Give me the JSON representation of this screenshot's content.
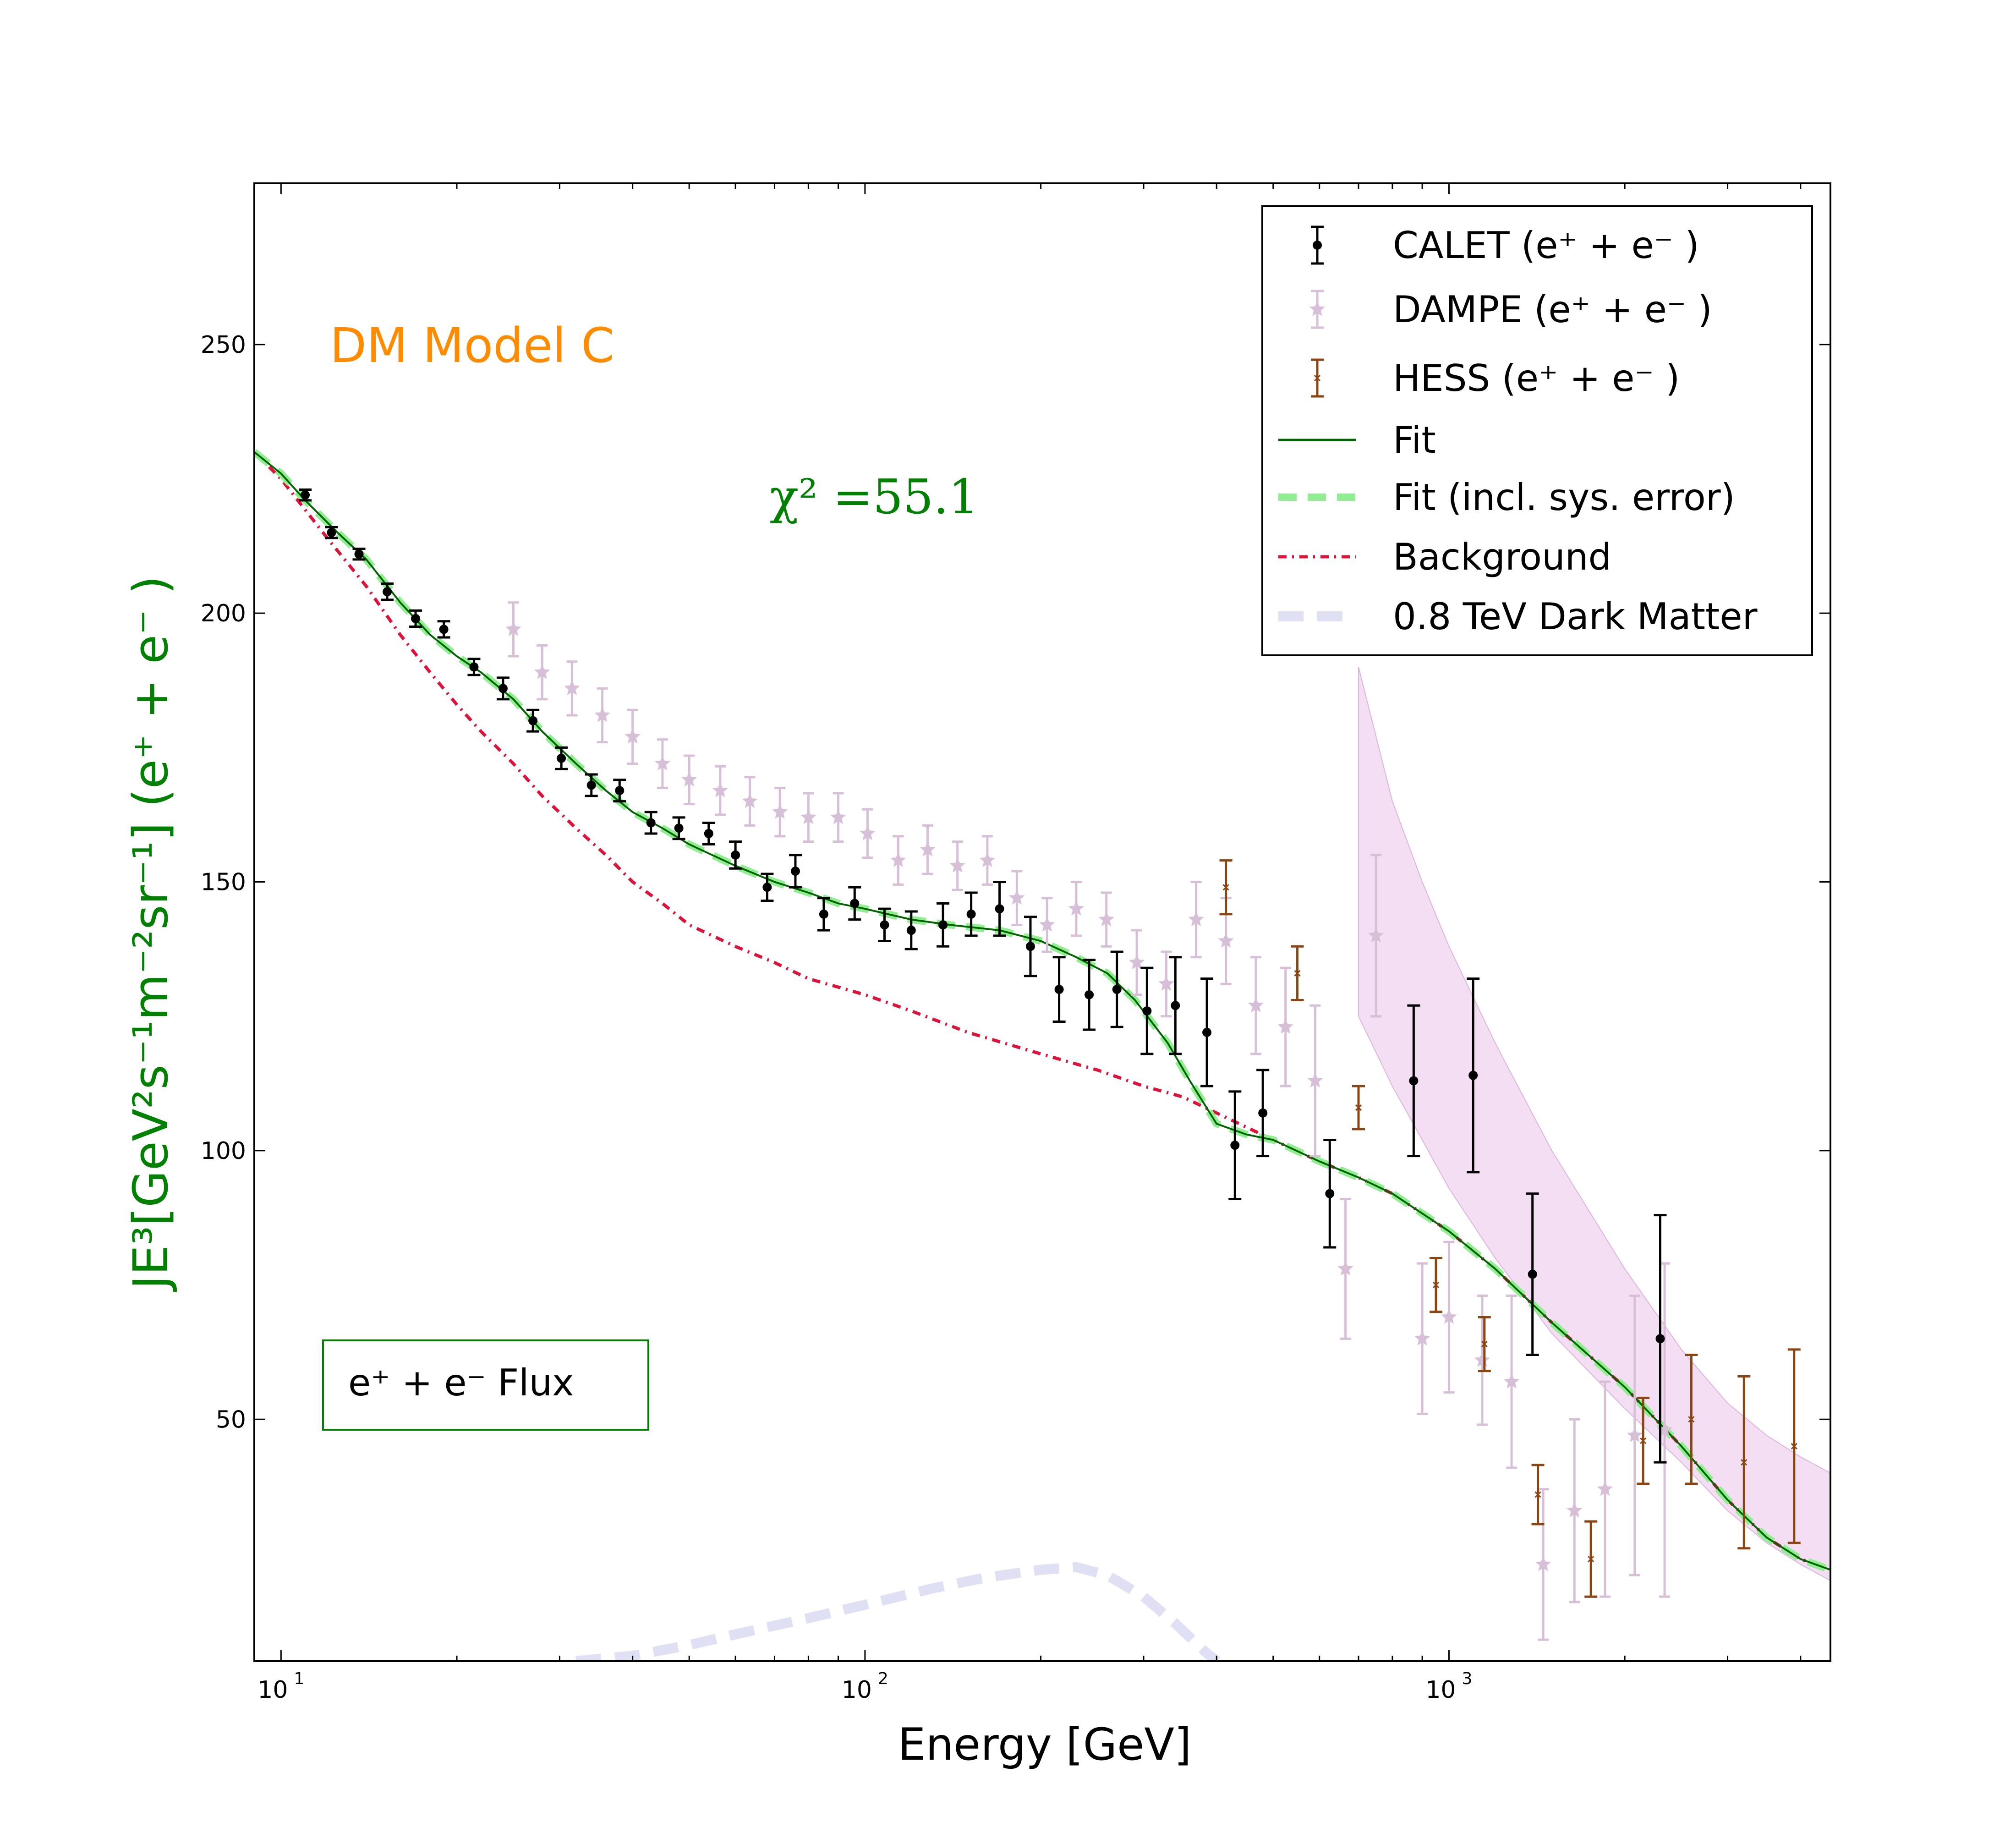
{
  "chart_data": {
    "type": "scatter",
    "x_scale": "log",
    "xlim": [
      9,
      4500
    ],
    "ylim": [
      5,
      280
    ],
    "xlabel": "Energy [GeV]",
    "ylabel": "JE³[GeV²s⁻¹m⁻²sr⁻¹] (e⁺ + e⁻ )",
    "x_tick_labels": [
      {
        "base": "10",
        "exp": "1",
        "value": 10
      },
      {
        "base": "10",
        "exp": "2",
        "value": 100
      },
      {
        "base": "10",
        "exp": "3",
        "value": 1000
      }
    ],
    "y_ticks": [
      50,
      100,
      150,
      200,
      250
    ],
    "y_tick_labels": [
      "50",
      "100",
      "150",
      "200",
      "250"
    ],
    "annotations": {
      "model": "DM Model C",
      "chi2": "χ² =55.1",
      "flux_label": "e⁺ + e⁻  Flux"
    },
    "legend": {
      "placement": "top-right",
      "entries": [
        "CALET (e⁺ + e⁻ )",
        "DAMPE (e⁺ + e⁻ )",
        "HESS (e⁺ + e⁻ )",
        "Fit",
        "Fit (incl. sys. error)",
        "Background",
        "0.8 TeV Dark Matter"
      ]
    },
    "colors": {
      "calet": "#000000",
      "dampe": "#d8bfd8",
      "hess": "#8b4513",
      "fit": "#006400",
      "fit_sys": "#90ee90",
      "background": "#dc143c",
      "dark_matter": "#e0e0f5",
      "band": "#ebc8eb",
      "chi2": "#008000",
      "model_label": "#ff8c00"
    },
    "series": [
      {
        "name": "CALET (e⁺ + e⁻ )",
        "points": [
          [
            11,
            222,
            1
          ],
          [
            12.2,
            215,
            1
          ],
          [
            13.6,
            211,
            1
          ],
          [
            15.2,
            204,
            1.5
          ],
          [
            17,
            199,
            1.5
          ],
          [
            19,
            197,
            1.5
          ],
          [
            21.4,
            190,
            1.5
          ],
          [
            24,
            186,
            2
          ],
          [
            27,
            180,
            2
          ],
          [
            30.2,
            173,
            2
          ],
          [
            34,
            168,
            2
          ],
          [
            38,
            167,
            2
          ],
          [
            43,
            161,
            2
          ],
          [
            48,
            160,
            2
          ],
          [
            54,
            159,
            2
          ],
          [
            60,
            155,
            2.5
          ],
          [
            68,
            149,
            2.5
          ],
          [
            76,
            152,
            3
          ],
          [
            85,
            144,
            3
          ],
          [
            96,
            146,
            3
          ],
          [
            108,
            142,
            3
          ],
          [
            120,
            141,
            3.5
          ],
          [
            136,
            142,
            4
          ],
          [
            152,
            144,
            4
          ],
          [
            170,
            145,
            5
          ],
          [
            192,
            138,
            5.5
          ],
          [
            215,
            130,
            6
          ],
          [
            242,
            129,
            6.5
          ],
          [
            270,
            130,
            7
          ],
          [
            304,
            126,
            8
          ],
          [
            340,
            127,
            9
          ],
          [
            385,
            122,
            10
          ],
          [
            430,
            101,
            10
          ],
          [
            480,
            107,
            8
          ],
          [
            625,
            92,
            10
          ],
          [
            870,
            113,
            14
          ],
          [
            1100,
            114,
            18
          ],
          [
            1390,
            77,
            15
          ],
          [
            2300,
            65,
            23
          ]
        ]
      },
      {
        "name": "DAMPE (e⁺ + e⁻ )",
        "points": [
          [
            25,
            197,
            5
          ],
          [
            28,
            189,
            5
          ],
          [
            31.5,
            186,
            5
          ],
          [
            35.5,
            181,
            5
          ],
          [
            40,
            177,
            5
          ],
          [
            45,
            172,
            4.5
          ],
          [
            50,
            169,
            4.5
          ],
          [
            56.5,
            167,
            4.5
          ],
          [
            63.5,
            165,
            4.5
          ],
          [
            71.5,
            163,
            4.5
          ],
          [
            80,
            162,
            4.5
          ],
          [
            90,
            162,
            4.5
          ],
          [
            101,
            159,
            4.5
          ],
          [
            114,
            154,
            4.5
          ],
          [
            128,
            156,
            4.5
          ],
          [
            144,
            153,
            4.5
          ],
          [
            162,
            154,
            4.5
          ],
          [
            182,
            147,
            5
          ],
          [
            205,
            142,
            5
          ],
          [
            230,
            145,
            5
          ],
          [
            259,
            143,
            5
          ],
          [
            292,
            135,
            6
          ],
          [
            328,
            131,
            6
          ],
          [
            369,
            143,
            7
          ],
          [
            415,
            139,
            8
          ],
          [
            467,
            127,
            9
          ],
          [
            525,
            123,
            11
          ],
          [
            590,
            113,
            14
          ],
          [
            665,
            78,
            13
          ],
          [
            750,
            140,
            15
          ],
          [
            900,
            65,
            14
          ],
          [
            1000,
            69,
            14
          ],
          [
            1140,
            61,
            12
          ],
          [
            1280,
            57,
            16
          ],
          [
            1450,
            23,
            14
          ],
          [
            1640,
            33,
            17
          ],
          [
            1850,
            37,
            20
          ],
          [
            2080,
            47,
            26
          ],
          [
            2340,
            48,
            31
          ]
        ]
      },
      {
        "name": "HESS (e⁺ + e⁻ )",
        "points": [
          [
            415,
            149,
            5
          ],
          [
            550,
            133,
            5
          ],
          [
            700,
            108,
            4
          ],
          [
            950,
            75,
            5
          ],
          [
            1150,
            64,
            5
          ],
          [
            1420,
            36,
            5.5
          ],
          [
            1750,
            24,
            7
          ],
          [
            2150,
            46,
            8
          ],
          [
            2600,
            50,
            12
          ],
          [
            3200,
            42,
            16
          ],
          [
            3900,
            45,
            18
          ]
        ]
      },
      {
        "name": "Fit",
        "points": [
          [
            9,
            230
          ],
          [
            10,
            226
          ],
          [
            11,
            221
          ],
          [
            12.5,
            215
          ],
          [
            14,
            210
          ],
          [
            16,
            202
          ],
          [
            18,
            196
          ],
          [
            20,
            192
          ],
          [
            22,
            189
          ],
          [
            25,
            184
          ],
          [
            28,
            178
          ],
          [
            32,
            172
          ],
          [
            36,
            167
          ],
          [
            40,
            163
          ],
          [
            45,
            160
          ],
          [
            50,
            157
          ],
          [
            60,
            153
          ],
          [
            70,
            150
          ],
          [
            80,
            148
          ],
          [
            90,
            146
          ],
          [
            100,
            145
          ],
          [
            120,
            143
          ],
          [
            140,
            142
          ],
          [
            170,
            141
          ],
          [
            200,
            139
          ],
          [
            230,
            136
          ],
          [
            260,
            133
          ],
          [
            290,
            128
          ],
          [
            330,
            120
          ],
          [
            360,
            113
          ],
          [
            400,
            105
          ],
          [
            450,
            103
          ],
          [
            500,
            102
          ],
          [
            600,
            98
          ],
          [
            700,
            95
          ],
          [
            800,
            92
          ],
          [
            1000,
            85
          ],
          [
            1200,
            78
          ],
          [
            1500,
            68
          ],
          [
            2000,
            56
          ],
          [
            2500,
            45
          ],
          [
            3000,
            35
          ],
          [
            3500,
            28
          ],
          [
            4000,
            24
          ],
          [
            4500,
            22
          ]
        ]
      },
      {
        "name": "Fit (incl. sys. error)",
        "points": [
          [
            9,
            230
          ],
          [
            10,
            226
          ],
          [
            11,
            221
          ],
          [
            12.5,
            215
          ],
          [
            14,
            210
          ],
          [
            16,
            202
          ],
          [
            18,
            196
          ],
          [
            20,
            192
          ],
          [
            22,
            189
          ],
          [
            25,
            184
          ],
          [
            28,
            178
          ],
          [
            32,
            172
          ],
          [
            36,
            167
          ],
          [
            40,
            163
          ],
          [
            45,
            160
          ],
          [
            50,
            157
          ],
          [
            60,
            153
          ],
          [
            70,
            150
          ],
          [
            80,
            148
          ],
          [
            90,
            146
          ],
          [
            100,
            145
          ],
          [
            120,
            143
          ],
          [
            140,
            142
          ],
          [
            170,
            141
          ],
          [
            200,
            139
          ],
          [
            230,
            136
          ],
          [
            260,
            133
          ],
          [
            290,
            128
          ],
          [
            330,
            120
          ],
          [
            360,
            113
          ],
          [
            400,
            105
          ],
          [
            450,
            103
          ],
          [
            500,
            102
          ],
          [
            600,
            98
          ],
          [
            700,
            95
          ],
          [
            800,
            92
          ],
          [
            1000,
            85
          ],
          [
            1200,
            78
          ],
          [
            1500,
            68
          ],
          [
            2000,
            56
          ],
          [
            2500,
            45
          ],
          [
            3000,
            35
          ],
          [
            3500,
            28
          ],
          [
            4000,
            24
          ],
          [
            4500,
            22
          ]
        ]
      },
      {
        "name": "Background",
        "points": [
          [
            9,
            230
          ],
          [
            10,
            225
          ],
          [
            12,
            214
          ],
          [
            14,
            205
          ],
          [
            16,
            196
          ],
          [
            18,
            189
          ],
          [
            20,
            183
          ],
          [
            22,
            178
          ],
          [
            25,
            172
          ],
          [
            28,
            166
          ],
          [
            32,
            160
          ],
          [
            36,
            155
          ],
          [
            40,
            150
          ],
          [
            45,
            146
          ],
          [
            50,
            142
          ],
          [
            60,
            138
          ],
          [
            70,
            135
          ],
          [
            80,
            132
          ],
          [
            100,
            129
          ],
          [
            120,
            126
          ],
          [
            150,
            122
          ],
          [
            200,
            118
          ],
          [
            250,
            115
          ],
          [
            300,
            112
          ],
          [
            350,
            110
          ],
          [
            400,
            107
          ],
          [
            500,
            102
          ],
          [
            600,
            98
          ],
          [
            700,
            95
          ],
          [
            800,
            92
          ],
          [
            1000,
            85
          ],
          [
            1200,
            78
          ],
          [
            1500,
            68
          ],
          [
            2000,
            56
          ],
          [
            2500,
            45
          ],
          [
            3000,
            35
          ],
          [
            3500,
            28
          ],
          [
            4000,
            24
          ],
          [
            4500,
            22
          ]
        ]
      },
      {
        "name": "0.8 TeV Dark Matter",
        "points": [
          [
            32,
            5
          ],
          [
            40,
            6
          ],
          [
            50,
            8
          ],
          [
            60,
            10
          ],
          [
            80,
            13
          ],
          [
            100,
            15.5
          ],
          [
            130,
            18.5
          ],
          [
            160,
            20.5
          ],
          [
            200,
            22
          ],
          [
            230,
            22.5
          ],
          [
            260,
            21
          ],
          [
            300,
            17
          ],
          [
            340,
            12
          ],
          [
            380,
            7
          ],
          [
            400,
            5
          ]
        ]
      }
    ],
    "band": {
      "upper": [
        [
          700,
          190
        ],
        [
          800,
          165
        ],
        [
          900,
          150
        ],
        [
          1000,
          138
        ],
        [
          1200,
          120
        ],
        [
          1500,
          100
        ],
        [
          2000,
          78
        ],
        [
          2500,
          63
        ],
        [
          3000,
          53
        ],
        [
          3500,
          47
        ],
        [
          4000,
          43
        ],
        [
          4500,
          40
        ]
      ],
      "lower": [
        [
          700,
          125
        ],
        [
          800,
          112
        ],
        [
          900,
          102
        ],
        [
          1000,
          93
        ],
        [
          1200,
          80
        ],
        [
          1500,
          66
        ],
        [
          2000,
          52
        ],
        [
          2500,
          42
        ],
        [
          3000,
          33
        ],
        [
          3500,
          27
        ],
        [
          4000,
          23
        ],
        [
          4500,
          20
        ]
      ]
    }
  }
}
